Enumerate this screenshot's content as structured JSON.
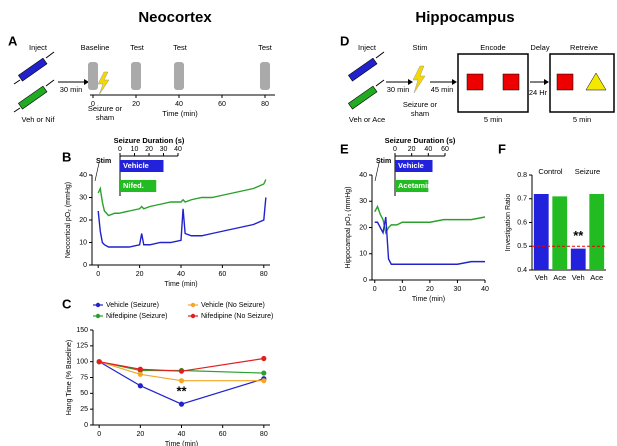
{
  "headings": [
    "Neocortex",
    "Hippocampus"
  ],
  "panels": [
    "A",
    "B",
    "C",
    "D",
    "E",
    "F"
  ],
  "schematic_a": {
    "inject": "Inject",
    "baseline": "Baseline",
    "test1": "Test",
    "test2": "Test",
    "test3": "Test",
    "interval": "30 min",
    "drug": "Veh or Nif",
    "seizure": "Seizure or sham",
    "axis_label": "Time (min)",
    "ticks": [
      "0",
      "20",
      "40",
      "60",
      "80"
    ]
  },
  "schematic_d": {
    "inject": "Inject",
    "stim": "Stim",
    "encode": "Encode",
    "delay": "Delay",
    "retrieve": "Retreive",
    "interval1": "30 min",
    "interval2": "45 min",
    "delay_time": "24 Hr",
    "encode_time": "5 min",
    "retrieve_time": "5 min",
    "drug": "Veh or Ace",
    "seizure": "Seizure or sham"
  },
  "chart_data": [
    {
      "type": "line",
      "annotation": "Stim",
      "xlabel": "Time (min)",
      "ylabel": "Neocortical pO₂ (mmHg)",
      "x": [
        0,
        1,
        2,
        3,
        5,
        8,
        10,
        15,
        20,
        21,
        22,
        25,
        30,
        35,
        40,
        41,
        42,
        45,
        50,
        55,
        60,
        65,
        70,
        75,
        80,
        81
      ],
      "series": [
        {
          "name": "Nifedipine",
          "color": "#2ca02c",
          "values": [
            32,
            34,
            28,
            24,
            22,
            23,
            23,
            24,
            25,
            26,
            25,
            26,
            27,
            28,
            28,
            29,
            28,
            29,
            30,
            30,
            31,
            32,
            33,
            34,
            36,
            38
          ]
        },
        {
          "name": "Vehicle",
          "color": "#2222cc",
          "values": [
            24,
            15,
            10,
            9,
            8,
            8,
            8,
            8,
            9,
            14,
            9,
            9,
            10,
            10,
            11,
            25,
            14,
            13,
            13,
            14,
            15,
            16,
            17,
            18,
            20,
            30
          ]
        }
      ],
      "xlim": [
        -3,
        83
      ],
      "xticks": [
        0,
        20,
        40,
        60,
        80
      ],
      "ylim": [
        0,
        40
      ],
      "yticks": [
        0,
        10,
        20,
        30,
        40
      ]
    },
    {
      "type": "hbar",
      "title": "Seizure Duration (s)",
      "categories": [
        "Vehicle",
        "Nifed."
      ],
      "values": [
        30,
        25
      ],
      "colors": [
        "#2222dd",
        "#22bb22"
      ],
      "xlim": [
        0,
        40
      ],
      "xticks": [
        0,
        10,
        20,
        30,
        40
      ]
    },
    {
      "type": "line",
      "markers": true,
      "annotation": "**",
      "xlabel": "Time (min)",
      "ylabel": "Hang Time (% Baseline)",
      "x": [
        0,
        20,
        40,
        80
      ],
      "series": [
        {
          "name": "Vehicle (Seizure)",
          "color": "#2222cc",
          "values": [
            100,
            62,
            33,
            73
          ]
        },
        {
          "name": "Nifedipine (Seizure)",
          "color": "#2ca02c",
          "values": [
            100,
            86,
            86,
            82
          ]
        },
        {
          "name": "Vehicle (No Seizure)",
          "color": "#f5a623",
          "values": [
            100,
            80,
            70,
            70
          ]
        },
        {
          "name": "Nifedipine (No Seizure)",
          "color": "#e02020",
          "values": [
            100,
            88,
            85,
            105
          ]
        }
      ],
      "xlim": [
        -3,
        83
      ],
      "xticks": [
        0,
        20,
        40,
        60,
        80
      ],
      "ylim": [
        0,
        150
      ],
      "yticks": [
        0,
        25,
        50,
        75,
        100,
        125,
        150
      ]
    },
    {
      "type": "line",
      "annotation": "Stim",
      "xlabel": "Time (min)",
      "ylabel": "Hippocampal pO₂ (mmHg)",
      "x": [
        0,
        1,
        2,
        3,
        4,
        5,
        6,
        8,
        10,
        15,
        20,
        25,
        30,
        35,
        40
      ],
      "series": [
        {
          "name": "Acetaminophen",
          "color": "#2ca02c",
          "values": [
            26,
            28,
            25,
            23,
            18,
            20,
            21,
            21,
            22,
            22,
            22,
            23,
            23,
            23,
            24
          ]
        },
        {
          "name": "Vehicle",
          "color": "#2222cc",
          "values": [
            22,
            22,
            20,
            18,
            24,
            8,
            6,
            6,
            6,
            6,
            6,
            6,
            6,
            7,
            7
          ]
        }
      ],
      "xlim": [
        -1,
        40
      ],
      "xticks": [
        0,
        10,
        20,
        30,
        40
      ],
      "ylim": [
        0,
        40
      ],
      "yticks": [
        0,
        10,
        20,
        30,
        40
      ]
    },
    {
      "type": "hbar",
      "title": "Seizure Duration (s)",
      "categories": [
        "Vehicle",
        "Acetamin."
      ],
      "values": [
        45,
        40
      ],
      "colors": [
        "#2222dd",
        "#22bb22"
      ],
      "xlim": [
        0,
        60
      ],
      "xticks": [
        0,
        20,
        40,
        60
      ]
    },
    {
      "type": "bar",
      "ylabel": "Investigation Ratio",
      "categories": [
        "Veh",
        "Ace",
        "Veh",
        "Ace"
      ],
      "groups": [
        "Control",
        "Seizure"
      ],
      "values": [
        0.72,
        0.71,
        0.49,
        0.72
      ],
      "colors": [
        "#2222dd",
        "#22bb22",
        "#2222dd",
        "#22bb22"
      ],
      "reference_line": 0.5,
      "annotation": "**",
      "ylim": [
        0.4,
        0.8
      ],
      "yticks": [
        0.4,
        0.5,
        0.6,
        0.7,
        0.8
      ]
    }
  ]
}
